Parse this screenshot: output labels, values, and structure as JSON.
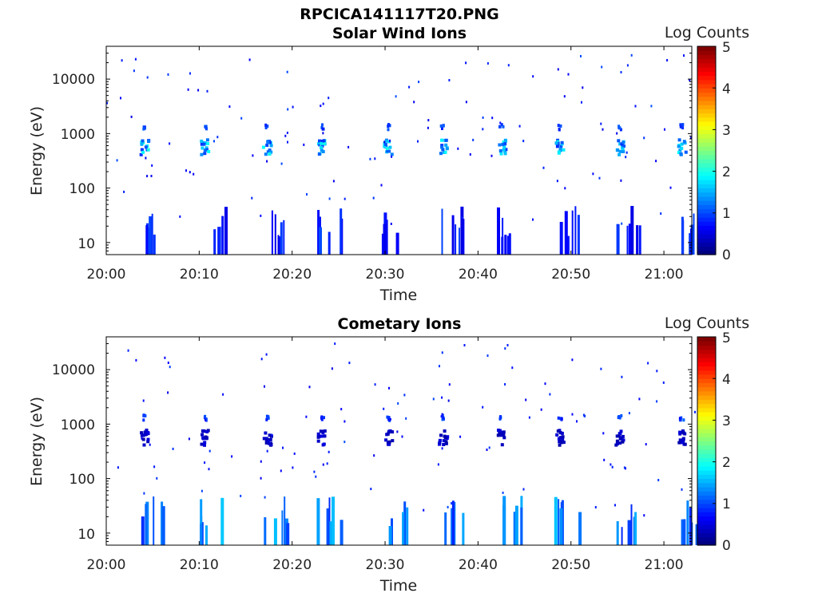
{
  "figure_title": "RPCICA141117T20.PNG",
  "chart_data": [
    {
      "type": "heatmap",
      "title": "Solar Wind Ions",
      "xlabel": "Time",
      "ylabel": "Energy (eV)",
      "xlim": [
        "20:00",
        "21:03"
      ],
      "ylim": [
        6,
        40000
      ],
      "y_scale": "log",
      "xticks": [
        "20:00",
        "20:10",
        "20:20",
        "20:30",
        "20:40",
        "20:50",
        "21:00"
      ],
      "yticks": [
        "10",
        "100",
        "1000",
        "10000"
      ],
      "colorbar": {
        "label": "Log Counts",
        "range": [
          0,
          5
        ],
        "ticks": [
          "0",
          "1",
          "2",
          "3",
          "4",
          "5"
        ]
      },
      "cycle_minutes": [
        4.0,
        10.5,
        17.2,
        23.1,
        30.2,
        36.1,
        42.4,
        48.7,
        55.1,
        61.8
      ],
      "peak_energy_ev": 600,
      "peak_log_counts": 2.0,
      "low_energy_max_log_counts": 1.0
    },
    {
      "type": "heatmap",
      "title": "Cometary Ions",
      "xlabel": "Time",
      "ylabel": "Energy (eV)",
      "xlim": [
        "20:00",
        "21:03"
      ],
      "ylim": [
        6,
        40000
      ],
      "y_scale": "log",
      "xticks": [
        "20:00",
        "20:10",
        "20:20",
        "20:30",
        "20:40",
        "20:50",
        "21:00"
      ],
      "yticks": [
        "10",
        "100",
        "1000",
        "10000"
      ],
      "colorbar": {
        "label": "Log Counts",
        "range": [
          0,
          5
        ],
        "ticks": [
          "0",
          "1",
          "2",
          "3",
          "4",
          "5"
        ]
      },
      "cycle_minutes": [
        4.0,
        10.5,
        17.2,
        23.1,
        30.2,
        36.1,
        42.4,
        48.7,
        55.1,
        61.8
      ],
      "peak_energy_ev": 600,
      "peak_log_counts": 0.5,
      "low_energy_max_log_counts": 1.6
    }
  ]
}
